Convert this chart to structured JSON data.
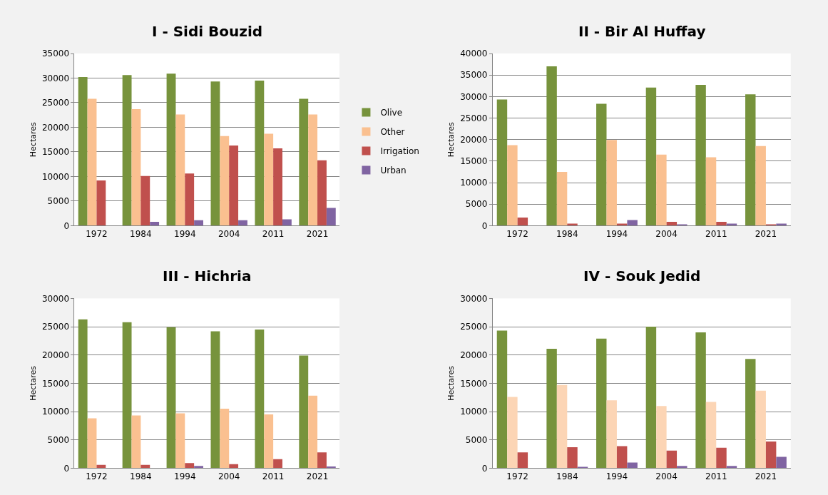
{
  "chart_data": [
    {
      "type": "bar",
      "title": "I - Sidi Bouzid",
      "ylabel": "Hectares",
      "categories": [
        "1972",
        "1984",
        "1994",
        "2004",
        "2011",
        "2021"
      ],
      "ylim": [
        0,
        35000
      ],
      "yticks": [
        0,
        5000,
        10000,
        15000,
        20000,
        25000,
        30000,
        35000
      ],
      "grid": "y",
      "legend": "right",
      "series": [
        {
          "name": "Olive",
          "color": "#77933c",
          "values": [
            30200,
            30600,
            30900,
            29300,
            29500,
            25800
          ]
        },
        {
          "name": "Other",
          "color": "#fac090",
          "values": [
            25800,
            23700,
            22600,
            18200,
            18700,
            22600
          ]
        },
        {
          "name": "Irrigation",
          "color": "#c0504d",
          "values": [
            9200,
            10100,
            10600,
            16300,
            15700,
            13300
          ]
        },
        {
          "name": "Urban",
          "color": "#8064a2",
          "values": [
            0,
            800,
            1100,
            1100,
            1300,
            3600
          ]
        }
      ]
    },
    {
      "type": "bar",
      "title": "II - Bir Al Huffay",
      "ylabel": "Hectares",
      "categories": [
        "1972",
        "1984",
        "1994",
        "2004",
        "2011",
        "2021"
      ],
      "ylim": [
        0,
        40000
      ],
      "yticks": [
        0,
        5000,
        10000,
        15000,
        20000,
        25000,
        30000,
        35000,
        40000
      ],
      "grid": "y",
      "series": [
        {
          "color": "#77933c",
          "values": [
            29300,
            37000,
            28300,
            32100,
            32700,
            30500
          ]
        },
        {
          "color": "#fac090",
          "values": [
            18700,
            12500,
            19900,
            16500,
            15900,
            18500
          ]
        },
        {
          "color": "#c0504d",
          "values": [
            1900,
            500,
            500,
            900,
            900,
            300
          ]
        },
        {
          "color": "#8064a2",
          "values": [
            0,
            0,
            1300,
            300,
            500,
            500
          ]
        }
      ]
    },
    {
      "type": "bar",
      "title": "III - Hichria",
      "ylabel": "Hectares",
      "categories": [
        "1972",
        "1984",
        "1994",
        "2004",
        "2011",
        "2021"
      ],
      "ylim": [
        0,
        30000
      ],
      "yticks": [
        0,
        5000,
        10000,
        15000,
        20000,
        25000,
        30000
      ],
      "grid": "y",
      "series": [
        {
          "color": "#77933c",
          "values": [
            26300,
            25800,
            24900,
            24200,
            24500,
            19900
          ]
        },
        {
          "color": "#fac090",
          "values": [
            8800,
            9300,
            9700,
            10500,
            9500,
            12800
          ]
        },
        {
          "color": "#c0504d",
          "values": [
            600,
            600,
            900,
            700,
            1600,
            2800
          ]
        },
        {
          "color": "#8064a2",
          "values": [
            0,
            0,
            400,
            0,
            0,
            300
          ]
        }
      ]
    },
    {
      "type": "bar",
      "title": "IV - Souk Jedid",
      "ylabel": "Hectares",
      "categories": [
        "1972",
        "1984",
        "1994",
        "2004",
        "2011",
        "2021"
      ],
      "ylim": [
        0,
        30000
      ],
      "yticks": [
        0,
        5000,
        10000,
        15000,
        20000,
        25000,
        30000
      ],
      "grid": "y",
      "series": [
        {
          "color": "#77933c",
          "values": [
            24300,
            21100,
            22900,
            25000,
            24000,
            19300
          ]
        },
        {
          "color": "#fcd5b5",
          "values": [
            12600,
            14700,
            12000,
            11000,
            11700,
            13700
          ]
        },
        {
          "color": "#c0504d",
          "values": [
            2800,
            3700,
            3900,
            3100,
            3600,
            4700
          ]
        },
        {
          "color": "#8064a2",
          "values": [
            0,
            200,
            1000,
            400,
            400,
            2000
          ]
        }
      ]
    }
  ]
}
